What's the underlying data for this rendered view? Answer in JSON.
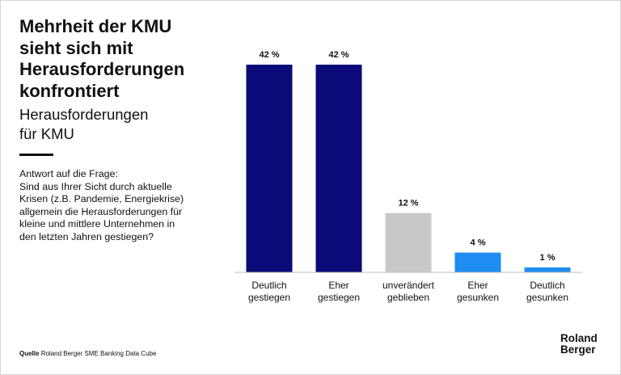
{
  "title_lines": [
    "Mehrheit der KMU",
    "sieht sich mit",
    "Herausforderungen",
    "konfrontiert"
  ],
  "subtitle_lines": [
    "Herausforderungen",
    "für KMU"
  ],
  "question_lines": [
    "Antwort auf die Frage:",
    "Sind aus Ihrer Sicht durch aktuelle",
    "Krisen (z.B. Pandemie, Energiekrise)",
    "allgemein die Herausforderungen für",
    "kleine und mittlere Unternehmen in",
    "den letzten Jahren gestiegen?"
  ],
  "source": {
    "label": "Quelle",
    "text": "Roland Berger SME Banking Data Cube"
  },
  "logo_lines": [
    "Roland",
    "Berger"
  ],
  "chart_data": {
    "type": "bar",
    "categories": [
      [
        "Deutlich",
        "gestiegen"
      ],
      [
        "Eher",
        "gestiegen"
      ],
      [
        "unverändert",
        "geblieben"
      ],
      [
        "Eher",
        "gesunken"
      ],
      [
        "Deutlich",
        "gesunken"
      ]
    ],
    "values": [
      42,
      42,
      12,
      4,
      1
    ],
    "value_labels": [
      "42 %",
      "42 %",
      "12 %",
      "4 %",
      "1 %"
    ],
    "colors": [
      "#0a0a78",
      "#0a0a78",
      "#c8c8c8",
      "#1e8cf0",
      "#1e8cf0"
    ],
    "unit": "%",
    "ylim": [
      0,
      42
    ],
    "grid": false
  }
}
